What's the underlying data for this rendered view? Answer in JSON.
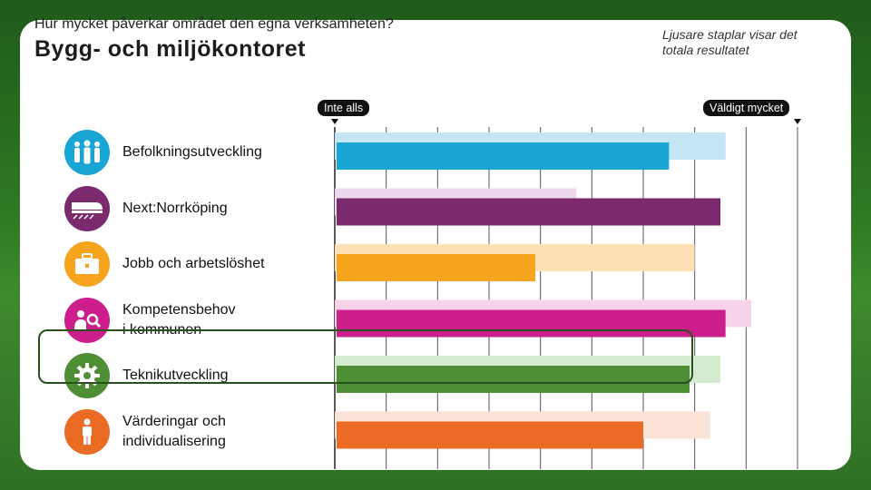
{
  "header": {
    "question": "Hur mycket påverkar området den egna verksamheten?",
    "title": "Bygg- och miljökontoret",
    "note": "Ljusare staplar visar det totala resultatet"
  },
  "chart_data": {
    "type": "bar",
    "orientation": "horizontal",
    "scale_min_label": "Inte alls",
    "scale_max_label": "Väldigt mycket",
    "xlim": [
      0,
      9
    ],
    "grid": true,
    "categories": [
      "Befolkningsutveckling",
      "Next:Norrköping",
      "Jobb och arbetslöshet",
      "Kompetensbehov\ni kommunen",
      "Teknikutveckling",
      "Värderingar och\nindividualisering"
    ],
    "series": [
      {
        "name": "Totalt resultat",
        "values": [
          7.6,
          4.7,
          7.0,
          8.1,
          7.5,
          7.3
        ]
      },
      {
        "name": "Bygg- och miljökontoret",
        "values": [
          6.5,
          7.5,
          3.9,
          7.6,
          6.9,
          6.0
        ]
      }
    ],
    "colors": [
      "#1aa6d4",
      "#7b2a6e",
      "#f6a31e",
      "#cc1f8b",
      "#4e8f35",
      "#ec6b24"
    ],
    "light_colors": [
      "#c4e6f4",
      "#ecd8eb",
      "#fde0b3",
      "#f7d3e9",
      "#d5ebcf",
      "#fbe2d6"
    ],
    "icons": [
      "people-icon",
      "train-icon",
      "briefcase-icon",
      "person-search-icon",
      "gear-icon",
      "person-icon"
    ],
    "highlighted_category": "Teknikutveckling"
  }
}
